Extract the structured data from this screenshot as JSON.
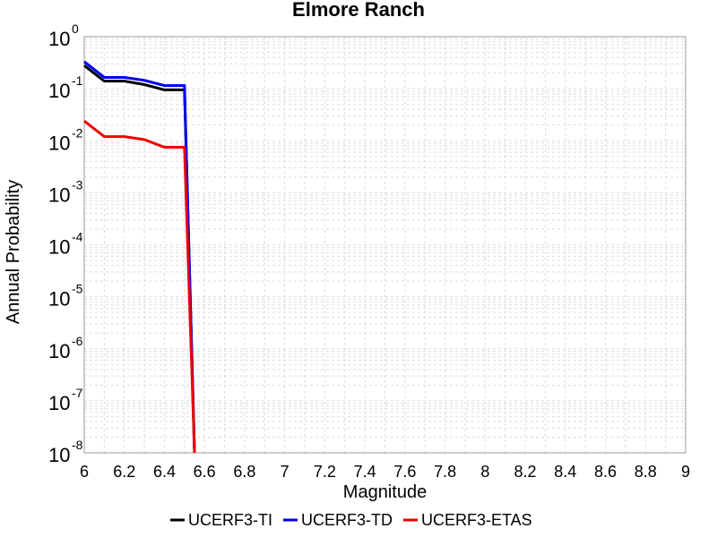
{
  "chart_data": {
    "type": "line",
    "title": "Elmore Ranch",
    "xlabel": "Magnitude",
    "ylabel": "Annual Probability",
    "xlim": [
      6,
      9
    ],
    "ylim": [
      1e-08,
      1
    ],
    "yscale": "log",
    "grid": true,
    "legend_position": "bottom",
    "x_ticks": [
      "6",
      "6.2",
      "6.4",
      "6.6",
      "6.8",
      "7",
      "7.2",
      "7.4",
      "7.6",
      "7.8",
      "8",
      "8.2",
      "8.4",
      "8.6",
      "8.8",
      "9"
    ],
    "y_ticks": [
      {
        "base": "10",
        "exp": "-8"
      },
      {
        "base": "10",
        "exp": "-7"
      },
      {
        "base": "10",
        "exp": "-6"
      },
      {
        "base": "10",
        "exp": "-5"
      },
      {
        "base": "10",
        "exp": "-4"
      },
      {
        "base": "10",
        "exp": "-3"
      },
      {
        "base": "10",
        "exp": "-2"
      },
      {
        "base": "10",
        "exp": "-1"
      },
      {
        "base": "10",
        "exp": "0"
      }
    ],
    "series": [
      {
        "name": "UCERF3-TI",
        "color": "#000000",
        "x": [
          6.0,
          6.1,
          6.2,
          6.3,
          6.4,
          6.5,
          6.55
        ],
        "y": [
          0.28,
          0.14,
          0.14,
          0.12,
          0.095,
          0.095,
          1e-08
        ]
      },
      {
        "name": "UCERF3-TD",
        "color": "#0000ee",
        "x": [
          6.0,
          6.1,
          6.2,
          6.3,
          6.4,
          6.5,
          6.55
        ],
        "y": [
          0.33,
          0.165,
          0.165,
          0.145,
          0.115,
          0.115,
          1e-08
        ]
      },
      {
        "name": "UCERF3-ETAS",
        "color": "#ee0000",
        "x": [
          6.0,
          6.1,
          6.2,
          6.3,
          6.4,
          6.5,
          6.55
        ],
        "y": [
          0.024,
          0.012,
          0.012,
          0.0105,
          0.0075,
          0.0075,
          1e-08
        ]
      }
    ]
  }
}
